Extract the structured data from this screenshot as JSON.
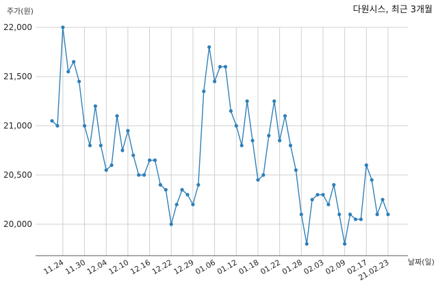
{
  "chart_data": {
    "type": "line",
    "title": "다원시스, 최근 3개월",
    "ylabel": "주가(원)",
    "xlabel": "날짜(일)",
    "ylim": [
      19700,
      22200
    ],
    "yticks": [
      20000,
      20500,
      21000,
      21500,
      22000
    ],
    "ytick_labels": [
      "20,000",
      "20,500",
      "21,000",
      "21,500",
      "22,000"
    ],
    "xtick_labels": [
      "11.24",
      "11.30",
      "12.04",
      "12.10",
      "12.16",
      "12.22",
      "12.29",
      "01.06",
      "01.12",
      "01.18",
      "01.22",
      "01.28",
      "02.03",
      "02.09",
      "02.17",
      "21.02.23"
    ],
    "xtick_positions": [
      2,
      6,
      10,
      14,
      18,
      22,
      26,
      30,
      34,
      38,
      42,
      46,
      50,
      54,
      58,
      62
    ],
    "grid": true,
    "line_color": "#2e7fb8",
    "series": [
      {
        "values": [
          21050,
          21000,
          22000,
          21550,
          21650,
          21450,
          21000,
          20800,
          21200,
          20800,
          20550,
          20600,
          21100,
          20750,
          20950,
          20700,
          20500,
          20500,
          20650,
          20650,
          20400,
          20350,
          20000,
          20200,
          20350,
          20300,
          20200,
          20400,
          21350,
          21800,
          21450,
          21600,
          21600,
          21150,
          21000,
          20800,
          21250,
          20850,
          20450,
          20500,
          20900,
          21250,
          20850,
          21100,
          20800,
          20550,
          20100,
          19800,
          20250,
          20300,
          20300,
          20200,
          20400,
          20100,
          19800,
          20100,
          20050,
          20050,
          20600,
          20450,
          20100,
          20250,
          20100
        ]
      }
    ]
  }
}
